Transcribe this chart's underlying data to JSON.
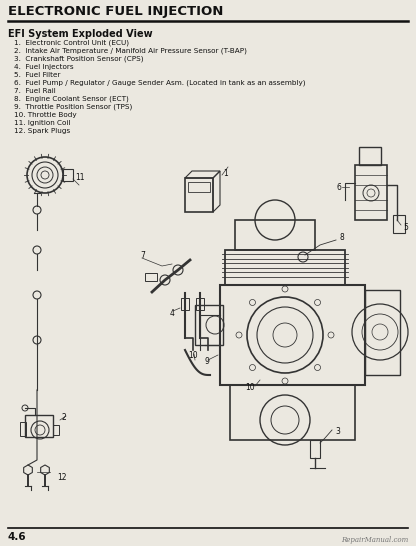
{
  "title": "ELECTRONIC FUEL INJECTION",
  "subtitle": "EFI System Exploded View",
  "items": [
    "1.  Electronic Control Unit (ECU)",
    "2.  Intake Air Temperature / Manifold Air Pressure Sensor (T-BAP)",
    "3.  Crankshaft Position Sensor (CPS)",
    "4.  Fuel Injectors",
    "5.  Fuel Filter",
    "6.  Fuel Pump / Regulator / Gauge Sender Asm. (Located in tank as an assembly)",
    "7.  Fuel Rail",
    "8.  Engine Coolant Sensor (ECT)",
    "9.  Throttle Position Sensor (TPS)",
    "10. Throttle Body",
    "11. Ignition Coil",
    "12. Spark Plugs"
  ],
  "page_number": "4.6",
  "watermark": "RepairManual.com",
  "bg_color": "#ebe8e0",
  "title_color": "#111111",
  "text_color": "#111111",
  "line_color": "#111111",
  "part_color": "#333333",
  "part_lw": 1.0
}
